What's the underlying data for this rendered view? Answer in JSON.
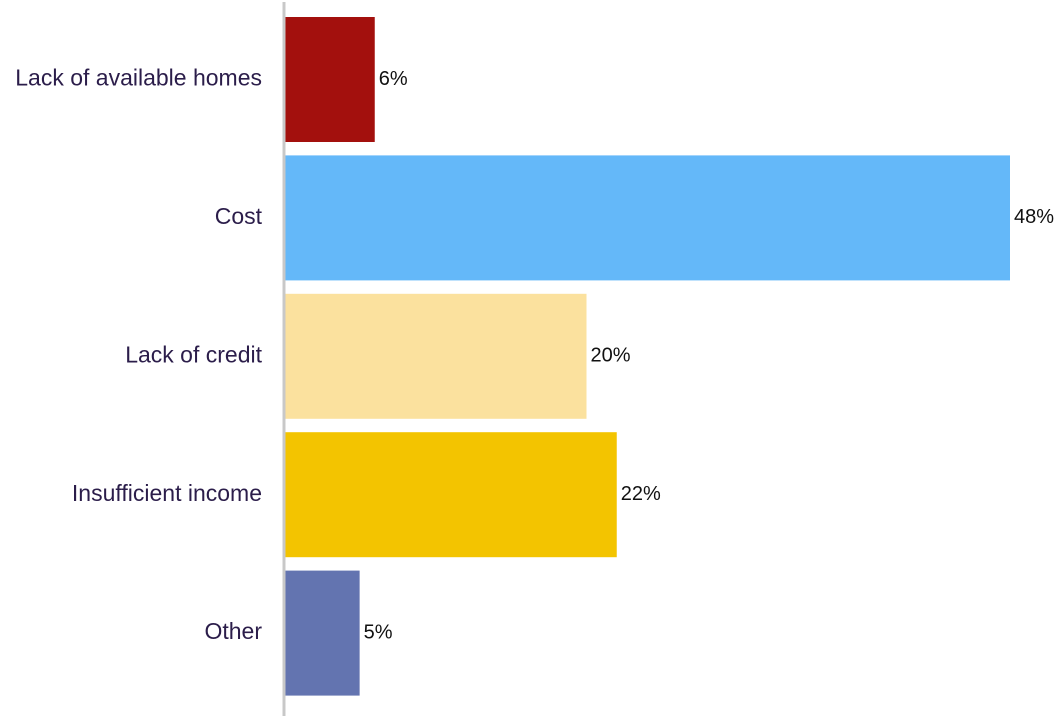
{
  "chart_data": {
    "type": "bar",
    "orientation": "horizontal",
    "categories": [
      "Lack of available homes",
      "Cost",
      "Lack of credit",
      "Insufficient income",
      "Other"
    ],
    "values": [
      6,
      48,
      20,
      22,
      5
    ],
    "value_labels": [
      "6%",
      "48%",
      "20%",
      "22%",
      "5%"
    ],
    "unit": "%",
    "xlim": [
      0,
      48
    ],
    "colors": [
      "#a3100d",
      "#64b8f9",
      "#fbe19e",
      "#f3c400",
      "#6374b0"
    ],
    "axis_color": "#c8c8c8",
    "grid": false,
    "legend": "none"
  }
}
